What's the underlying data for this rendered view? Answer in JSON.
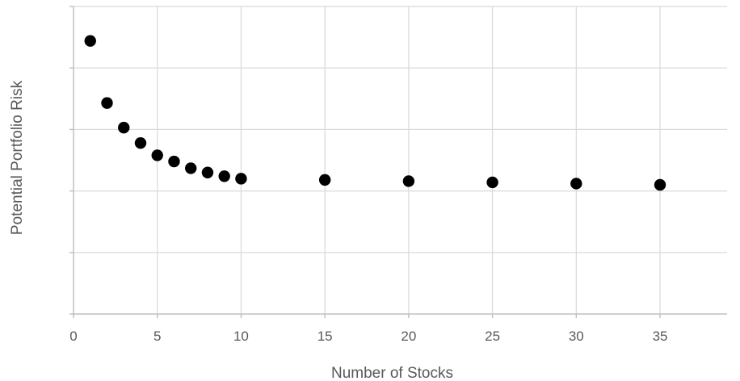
{
  "chart_data": {
    "type": "scatter",
    "title": "",
    "xlabel": "Number of Stocks",
    "ylabel": "Potential Portfolio Risk",
    "xlim": [
      0,
      39
    ],
    "ylim": [
      0,
      5
    ],
    "x_ticks": [
      0,
      5,
      10,
      15,
      20,
      25,
      30,
      35
    ],
    "y_gridlines": [
      0,
      1,
      2,
      3,
      4,
      5
    ],
    "y_tick_labels_shown": false,
    "grid": true,
    "legend": "none",
    "marker_color": "#000000",
    "grid_color": "#d9d9d9",
    "series": [
      {
        "points": [
          {
            "x": 1,
            "y": 4.44
          },
          {
            "x": 2,
            "y": 3.43
          },
          {
            "x": 3,
            "y": 3.03
          },
          {
            "x": 4,
            "y": 2.78
          },
          {
            "x": 5,
            "y": 2.58
          },
          {
            "x": 6,
            "y": 2.48
          },
          {
            "x": 7,
            "y": 2.37
          },
          {
            "x": 8,
            "y": 2.3
          },
          {
            "x": 9,
            "y": 2.24
          },
          {
            "x": 10,
            "y": 2.2
          },
          {
            "x": 15,
            "y": 2.18
          },
          {
            "x": 20,
            "y": 2.16
          },
          {
            "x": 25,
            "y": 2.14
          },
          {
            "x": 30,
            "y": 2.12
          },
          {
            "x": 35,
            "y": 2.1
          }
        ]
      }
    ]
  }
}
